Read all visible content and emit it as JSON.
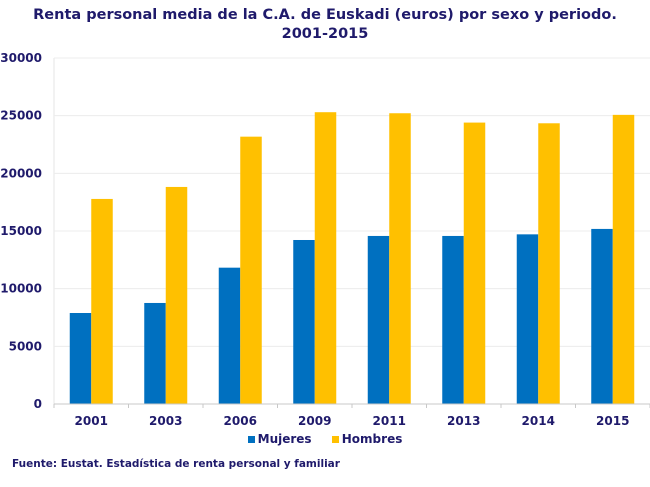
{
  "chart_data": {
    "type": "bar",
    "title": "Renta personal media de la C.A. de Euskadi (euros) por  sexo y periodo.",
    "subtitle": "2001-2015",
    "xlabel": "",
    "ylabel": "",
    "categories": [
      "2001",
      "2003",
      "2006",
      "2009",
      "2011",
      "2013",
      "2014",
      "2015"
    ],
    "series": [
      {
        "name": "Mujeres",
        "color": "#0070c0",
        "values": [
          7890,
          8760,
          11820,
          14220,
          14570,
          14570,
          14710,
          15180
        ]
      },
      {
        "name": "Hombres",
        "color": "#ffc000",
        "values": [
          17780,
          18820,
          23180,
          25300,
          25210,
          24400,
          24340,
          25070
        ]
      }
    ],
    "ylim": [
      0,
      30000
    ],
    "yticks": [
      0,
      5000,
      10000,
      15000,
      20000,
      25000,
      30000
    ],
    "ytick_labels": [
      "0",
      "5000",
      "10000",
      "15000",
      "20000",
      "25000",
      "30000"
    ],
    "grid": true,
    "legend_position": "bottom"
  },
  "source": "Fuente: Eustat. Estadística de renta personal y familiar"
}
